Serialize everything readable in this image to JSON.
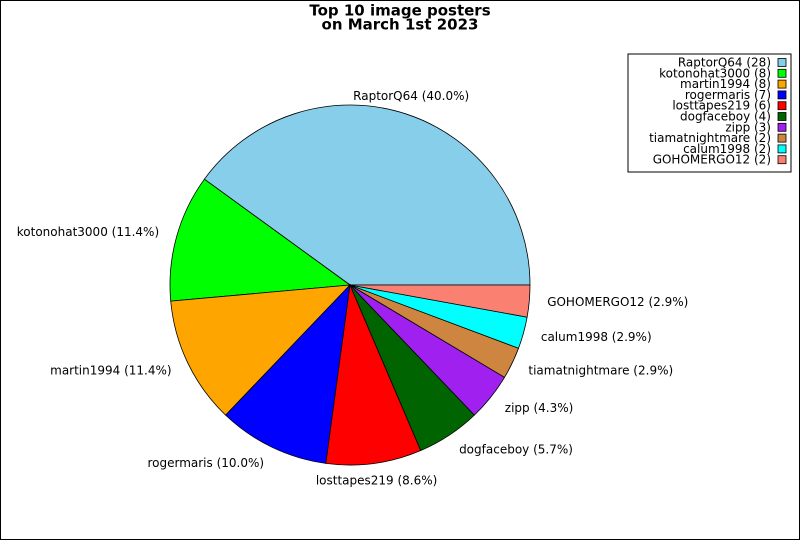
{
  "chart_data": {
    "type": "pie",
    "title": [
      "Top 10 image posters",
      "on March 1st 2023"
    ],
    "values": [
      28,
      8,
      8,
      7,
      6,
      4,
      3,
      2,
      2,
      2
    ],
    "value_labels": [
      "RaptorQ64 (40.0%)",
      "kotonohat3000 (11.4%)",
      "martin1994 (11.4%)",
      "rogermaris (10.0%)",
      "losttapes219 (8.6%)",
      "dogfaceboy (5.7%)",
      "zipp (4.3%)",
      "tiamatnightmare (2.9%)",
      "calum1998 (2.9%)",
      "GOHOMERGO12 (2.9%)"
    ],
    "legend_labels": [
      "RaptorQ64 (28)",
      "kotonohat3000 (8)",
      "martin1994 (8)",
      "rogermaris (7)",
      "losttapes219 (6)",
      "dogfaceboy (4)",
      "zipp (3)",
      "tiamatnightmare (2)",
      "calum1998 (2)",
      "GOHOMERGO12 (2)"
    ],
    "colors": [
      "#87ceeb",
      "#00ff00",
      "#ffa500",
      "#0000ff",
      "#ff0000",
      "#006400",
      "#a020f0",
      "#cd853f",
      "#00ffff",
      "#fa8072"
    ],
    "legend": "upper right"
  }
}
